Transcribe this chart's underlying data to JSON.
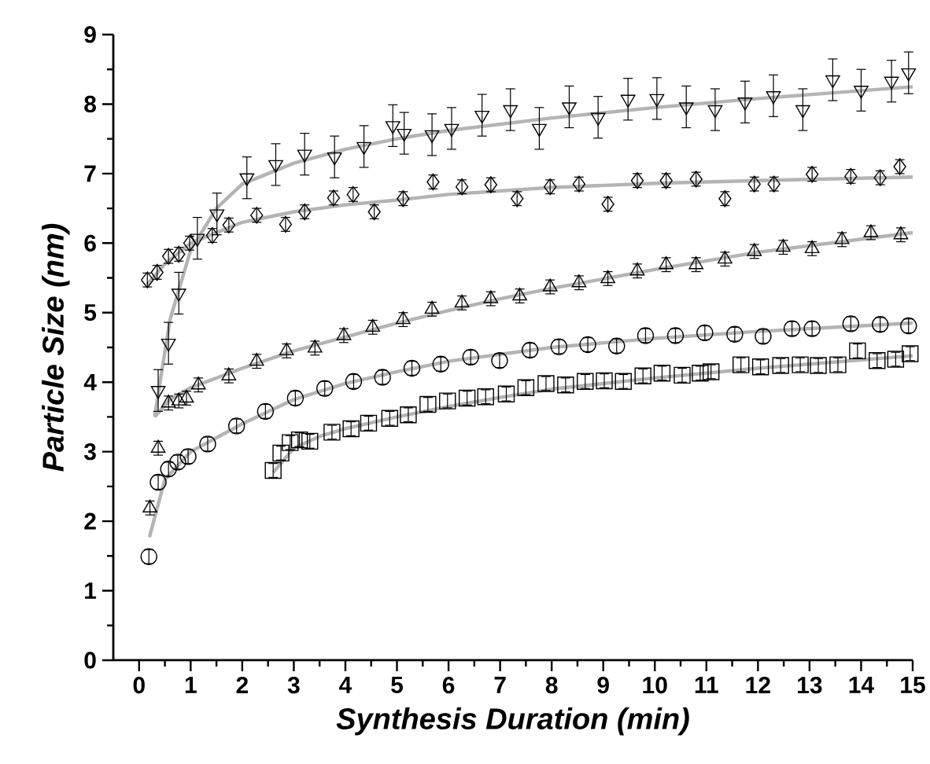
{
  "chart_data": {
    "type": "scatter",
    "xlabel": "Synthesis Duration (min)",
    "ylabel": "Particle Size (nm)",
    "xlim": [
      -0.5,
      15
    ],
    "ylim": [
      0,
      9
    ],
    "xticks": [
      0,
      1,
      2,
      3,
      4,
      5,
      6,
      7,
      8,
      9,
      10,
      11,
      12,
      13,
      14,
      15
    ],
    "yticks": [
      0,
      1,
      2,
      3,
      4,
      5,
      6,
      7,
      8,
      9
    ],
    "series": [
      {
        "type": "line",
        "color": "#b4b4b4",
        "marker": "none",
        "x": [
          0.3,
          0.6,
          1,
          1.5,
          2,
          3,
          4,
          5,
          6,
          8,
          10,
          12,
          15
        ],
        "values": [
          3.5,
          4.9,
          5.9,
          6.5,
          6.85,
          7.15,
          7.35,
          7.5,
          7.62,
          7.8,
          7.95,
          8.08,
          8.25
        ]
      },
      {
        "type": "line",
        "color": "#b4b4b4",
        "marker": "none",
        "x": [
          0.15,
          0.5,
          1,
          1.5,
          2,
          3,
          4,
          5,
          6,
          8,
          10,
          12,
          15
        ],
        "values": [
          5.4,
          5.7,
          6.0,
          6.15,
          6.3,
          6.45,
          6.55,
          6.62,
          6.7,
          6.8,
          6.86,
          6.9,
          6.95
        ]
      },
      {
        "type": "line",
        "color": "#b4b4b4",
        "marker": "none",
        "x": [
          0.3,
          0.6,
          1,
          2,
          3,
          4,
          5,
          6,
          7,
          8,
          10,
          12,
          15
        ],
        "values": [
          3.5,
          3.75,
          3.92,
          4.2,
          4.45,
          4.65,
          4.85,
          5.03,
          5.2,
          5.35,
          5.62,
          5.87,
          6.15
        ]
      },
      {
        "type": "line",
        "color": "#b4b4b4",
        "marker": "none",
        "x": [
          0.2,
          0.5,
          1,
          2,
          3,
          4,
          5,
          6,
          8,
          10,
          12,
          15
        ],
        "values": [
          1.77,
          2.6,
          3.0,
          3.4,
          3.75,
          3.98,
          4.15,
          4.3,
          4.5,
          4.63,
          4.73,
          4.85
        ]
      },
      {
        "type": "line",
        "color": "#b4b4b4",
        "marker": "none",
        "x": [
          2.6,
          3,
          3.5,
          4,
          5,
          6,
          7,
          8,
          9,
          10,
          12,
          15
        ],
        "values": [
          2.7,
          3.05,
          3.22,
          3.33,
          3.5,
          3.65,
          3.78,
          3.9,
          3.98,
          4.06,
          4.2,
          4.38
        ]
      },
      {
        "color": "#000000",
        "marker": "triangle-down",
        "x": [
          0.37,
          0.57,
          0.77,
          1.13,
          1.51,
          2.09,
          2.65,
          3.21,
          3.79,
          4.36,
          4.92,
          5.14,
          5.68,
          6.06,
          6.65,
          7.2,
          7.76,
          8.34,
          8.9,
          9.48,
          10.04,
          10.61,
          11.17,
          11.75,
          12.3,
          12.87,
          13.45,
          14.0,
          14.59,
          14.92
        ],
        "values": [
          3.88,
          4.56,
          5.28,
          6.07,
          6.42,
          6.94,
          7.13,
          7.28,
          7.24,
          7.39,
          7.69,
          7.58,
          7.56,
          7.65,
          7.84,
          7.92,
          7.65,
          7.96,
          7.81,
          8.07,
          8.08,
          7.96,
          7.92,
          8.03,
          8.12,
          7.92,
          8.35,
          8.2,
          8.33,
          8.45
        ],
        "errors": [
          0.3,
          0.3,
          0.3,
          0.3,
          0.3,
          0.3,
          0.3,
          0.3,
          0.3,
          0.3,
          0.3,
          0.3,
          0.3,
          0.3,
          0.3,
          0.3,
          0.3,
          0.3,
          0.3,
          0.3,
          0.3,
          0.3,
          0.3,
          0.3,
          0.3,
          0.3,
          0.3,
          0.3,
          0.3,
          0.3
        ]
      },
      {
        "color": "#000000",
        "marker": "diamond",
        "x": [
          0.16,
          0.35,
          0.57,
          0.77,
          0.98,
          1.42,
          1.74,
          2.28,
          2.84,
          3.21,
          3.77,
          4.15,
          4.56,
          5.12,
          5.7,
          6.26,
          6.82,
          7.33,
          7.97,
          8.53,
          9.09,
          9.66,
          10.22,
          10.8,
          11.36,
          11.93,
          12.31,
          13.05,
          13.8,
          14.37,
          14.75
        ],
        "values": [
          5.47,
          5.58,
          5.81,
          5.84,
          6.0,
          6.11,
          6.26,
          6.4,
          6.27,
          6.45,
          6.65,
          6.7,
          6.45,
          6.64,
          6.88,
          6.81,
          6.84,
          6.64,
          6.81,
          6.85,
          6.56,
          6.9,
          6.9,
          6.92,
          6.64,
          6.85,
          6.85,
          6.99,
          6.96,
          6.94,
          7.1
        ],
        "errors": [
          0.1,
          0.1,
          0.1,
          0.1,
          0.1,
          0.1,
          0.1,
          0.1,
          0.1,
          0.1,
          0.1,
          0.1,
          0.1,
          0.1,
          0.1,
          0.1,
          0.1,
          0.1,
          0.1,
          0.1,
          0.1,
          0.1,
          0.1,
          0.1,
          0.1,
          0.1,
          0.1,
          0.1,
          0.1,
          0.1,
          0.1
        ]
      },
      {
        "color": "#000000",
        "marker": "triangle",
        "x": [
          0.21,
          0.37,
          0.57,
          0.77,
          0.92,
          1.15,
          1.74,
          2.28,
          2.86,
          3.41,
          3.97,
          4.53,
          5.12,
          5.68,
          6.26,
          6.82,
          7.38,
          7.97,
          8.53,
          9.09,
          9.66,
          10.22,
          10.8,
          11.36,
          11.93,
          12.49,
          13.05,
          13.63,
          14.19,
          14.77
        ],
        "values": [
          2.19,
          3.05,
          3.7,
          3.73,
          3.77,
          3.96,
          4.09,
          4.3,
          4.45,
          4.49,
          4.67,
          4.79,
          4.9,
          5.05,
          5.14,
          5.2,
          5.24,
          5.37,
          5.43,
          5.49,
          5.6,
          5.69,
          5.69,
          5.77,
          5.88,
          5.94,
          5.92,
          6.05,
          6.15,
          6.12
        ],
        "errors": [
          0.1,
          0.1,
          0.1,
          0.1,
          0.1,
          0.1,
          0.1,
          0.1,
          0.1,
          0.1,
          0.1,
          0.1,
          0.1,
          0.1,
          0.1,
          0.1,
          0.1,
          0.1,
          0.1,
          0.1,
          0.1,
          0.1,
          0.1,
          0.1,
          0.1,
          0.1,
          0.1,
          0.1,
          0.1,
          0.1
        ]
      },
      {
        "color": "#000000",
        "marker": "circle",
        "x": [
          0.19,
          0.37,
          0.57,
          0.75,
          0.95,
          1.33,
          1.89,
          2.45,
          3.03,
          3.6,
          4.16,
          4.72,
          5.29,
          5.85,
          6.43,
          6.99,
          7.58,
          8.14,
          8.7,
          9.26,
          9.82,
          10.4,
          10.97,
          11.55,
          12.1,
          12.66,
          13.05,
          13.8,
          14.37,
          14.92
        ],
        "values": [
          1.49,
          2.56,
          2.75,
          2.85,
          2.93,
          3.11,
          3.37,
          3.58,
          3.77,
          3.91,
          4.01,
          4.07,
          4.2,
          4.26,
          4.36,
          4.31,
          4.46,
          4.51,
          4.54,
          4.52,
          4.67,
          4.67,
          4.71,
          4.69,
          4.66,
          4.77,
          4.77,
          4.84,
          4.83,
          4.81
        ],
        "errors": [
          0.1,
          0.1,
          0.1,
          0.1,
          0.1,
          0.1,
          0.1,
          0.1,
          0.1,
          0.1,
          0.1,
          0.1,
          0.1,
          0.1,
          0.1,
          0.1,
          0.1,
          0.1,
          0.1,
          0.1,
          0.1,
          0.1,
          0.1,
          0.1,
          0.1,
          0.1,
          0.1,
          0.1,
          0.1,
          0.1
        ]
      },
      {
        "color": "#000000",
        "marker": "square",
        "x": [
          2.6,
          2.75,
          2.93,
          3.11,
          3.31,
          3.74,
          4.11,
          4.45,
          4.86,
          5.22,
          5.6,
          5.98,
          6.36,
          6.72,
          7.12,
          7.5,
          7.89,
          8.27,
          8.65,
          9.02,
          9.39,
          9.77,
          10.14,
          10.53,
          10.88,
          11.09,
          11.67,
          12.05,
          12.44,
          12.82,
          13.17,
          13.55,
          13.93,
          14.31,
          14.67,
          14.95
        ],
        "values": [
          2.73,
          2.98,
          3.13,
          3.17,
          3.15,
          3.28,
          3.33,
          3.41,
          3.48,
          3.53,
          3.68,
          3.73,
          3.77,
          3.79,
          3.83,
          3.92,
          3.98,
          3.96,
          4.01,
          4.02,
          4.01,
          4.09,
          4.13,
          4.1,
          4.13,
          4.15,
          4.25,
          4.22,
          4.24,
          4.25,
          4.24,
          4.25,
          4.45,
          4.31,
          4.33,
          4.41
        ],
        "errors": [
          0.1,
          0.1,
          0.1,
          0.1,
          0.1,
          0.1,
          0.1,
          0.1,
          0.1,
          0.1,
          0.1,
          0.1,
          0.1,
          0.1,
          0.1,
          0.1,
          0.1,
          0.1,
          0.1,
          0.1,
          0.1,
          0.1,
          0.1,
          0.1,
          0.1,
          0.1,
          0.1,
          0.1,
          0.1,
          0.1,
          0.1,
          0.1,
          0.1,
          0.1,
          0.1,
          0.1
        ]
      }
    ]
  }
}
